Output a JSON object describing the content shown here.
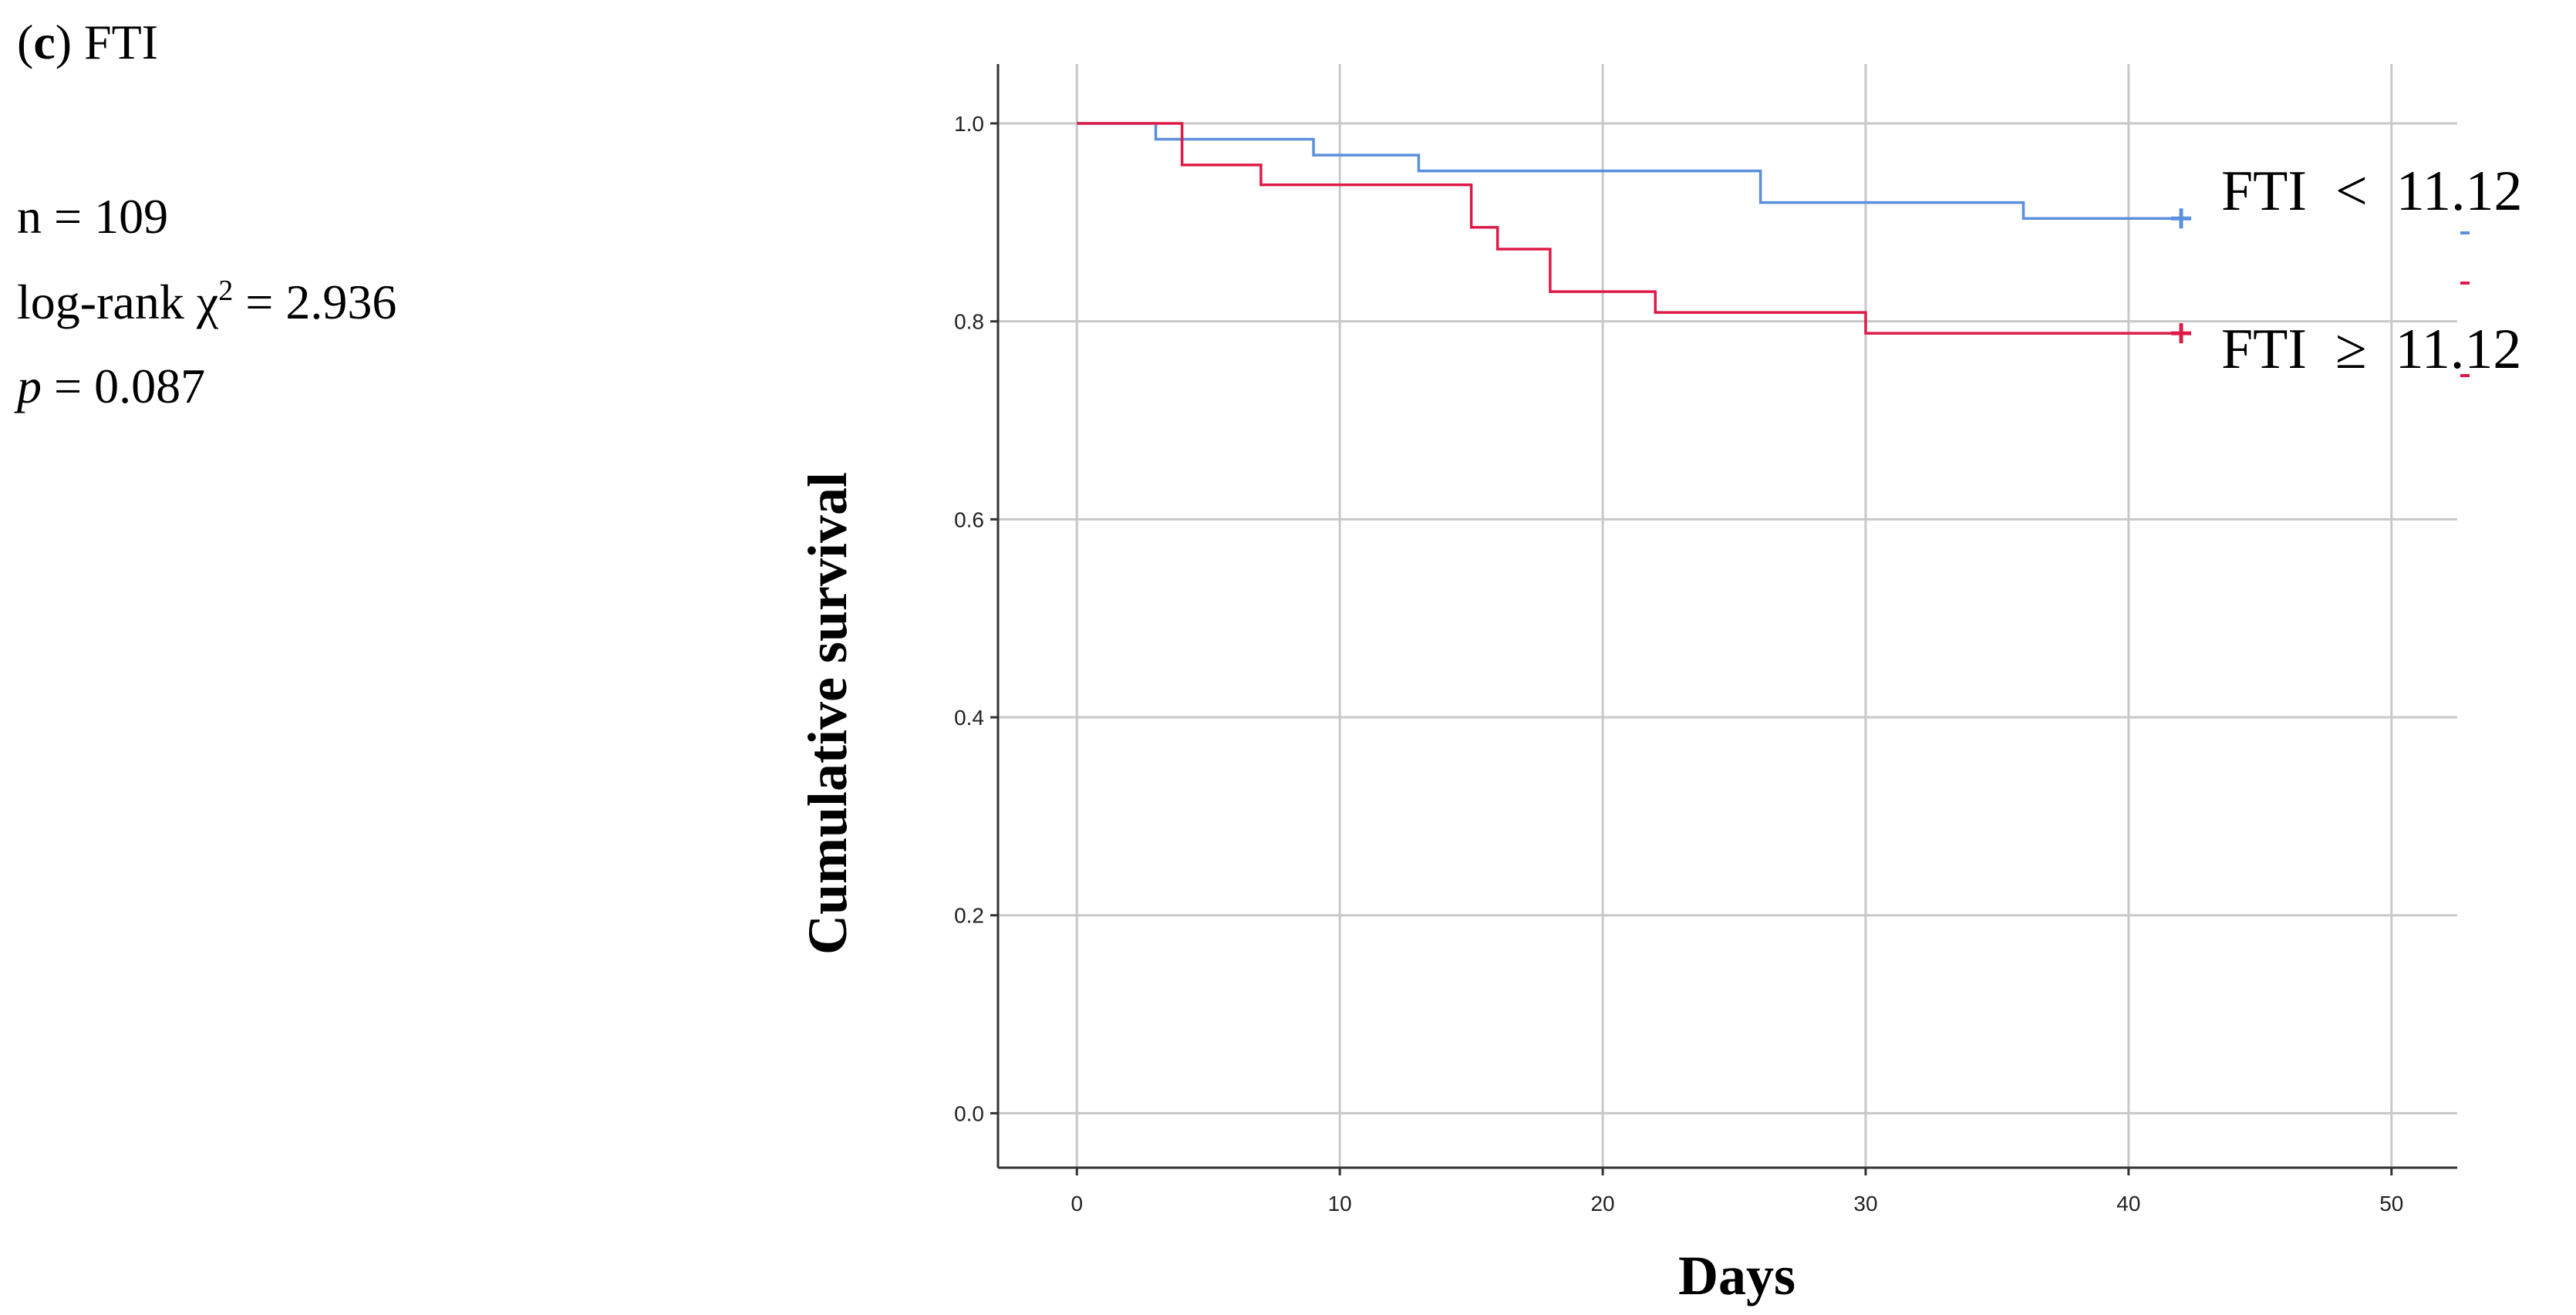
{
  "panel": {
    "label_letter": "c",
    "label_name": "FTI",
    "stats": {
      "n_text": "n = 109",
      "logrank_prefix": "log-rank χ",
      "logrank_sup": "2",
      "logrank_value": " = 2.936",
      "p_symbol": "p",
      "p_value": " = 0.087"
    }
  },
  "chart_data": {
    "type": "line",
    "subtype": "kaplan-meier step",
    "xlabel": "Days",
    "ylabel": "Cumulative  survival",
    "xlim": [
      -3,
      52.5
    ],
    "ylim": [
      -0.055,
      1.06
    ],
    "xticks": [
      0,
      10,
      20,
      30,
      40,
      50
    ],
    "yticks": [
      0.0,
      0.2,
      0.4,
      0.6,
      0.8,
      1.0
    ],
    "grid": true,
    "legend": "right",
    "series": [
      {
        "name": "FTI  <  11.12",
        "color": "#5b8fdd",
        "steps": [
          [
            0,
            1.0
          ],
          [
            3,
            0.984
          ],
          [
            9,
            0.968
          ],
          [
            13,
            0.952
          ],
          [
            26,
            0.92
          ],
          [
            36,
            0.904
          ],
          [
            42,
            0.904
          ]
        ],
        "censor": [
          [
            42,
            0.904
          ]
        ]
      },
      {
        "name": "FTI  ≥  11.12",
        "color": "#dd1b48",
        "steps": [
          [
            0,
            1.0
          ],
          [
            4,
            0.958
          ],
          [
            7,
            0.938
          ],
          [
            15,
            0.895
          ],
          [
            16,
            0.873
          ],
          [
            18,
            0.83
          ],
          [
            22,
            0.809
          ],
          [
            30,
            0.788
          ],
          [
            42,
            0.788
          ]
        ],
        "censor": [
          [
            42,
            0.788
          ]
        ]
      }
    ]
  }
}
